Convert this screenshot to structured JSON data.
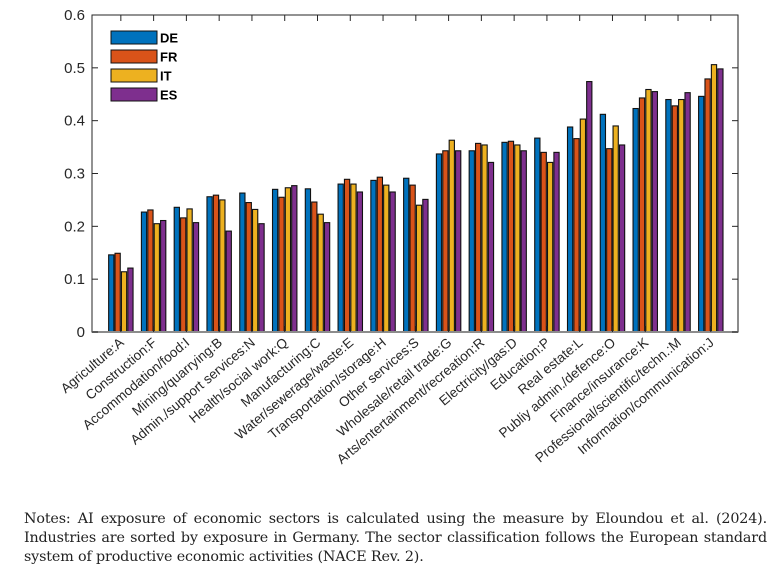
{
  "chart_data": {
    "type": "bar",
    "title": "",
    "xlabel": "",
    "ylabel": "",
    "ylim": [
      0,
      0.6
    ],
    "yticks": [
      "0",
      "0.1",
      "0.2",
      "0.3",
      "0.4",
      "0.5",
      "0.6"
    ],
    "grid": false,
    "legend_position": "top-left",
    "categories": [
      "Agriculture:A",
      "Construction:F",
      "Accommodation/food:I",
      "Mining/quarrying:B",
      "Admin./support services:N",
      "Health/social work:Q",
      "Manufacturing:C",
      "Water/sewerage/waste:E",
      "Transportation/storage:H",
      "Other services:S",
      "Wholesale/retail trade:G",
      "Arts/entertainment/recreation:R",
      "Electricity/gas:D",
      "Education:P",
      "Real estate:L",
      "Publiy admin./defence:O",
      "Finance/insurance:K",
      "Professional/scientific/techn.:M",
      "Information/communication:J"
    ],
    "series": [
      {
        "name": "DE",
        "color": "#0072BD",
        "values": [
          0.146,
          0.227,
          0.236,
          0.256,
          0.263,
          0.27,
          0.271,
          0.28,
          0.287,
          0.291,
          0.337,
          0.343,
          0.359,
          0.367,
          0.388,
          0.412,
          0.423,
          0.44,
          0.446
        ]
      },
      {
        "name": "FR",
        "color": "#D95319",
        "values": [
          0.149,
          0.231,
          0.216,
          0.259,
          0.245,
          0.255,
          0.246,
          0.289,
          0.293,
          0.278,
          0.343,
          0.357,
          0.361,
          0.34,
          0.366,
          0.347,
          0.443,
          0.428,
          0.479
        ]
      },
      {
        "name": "IT",
        "color": "#EDB120",
        "values": [
          0.114,
          0.205,
          0.233,
          0.25,
          0.232,
          0.273,
          0.223,
          0.28,
          0.278,
          0.24,
          0.363,
          0.354,
          0.354,
          0.321,
          0.403,
          0.39,
          0.459,
          0.44,
          0.506
        ]
      },
      {
        "name": "ES",
        "color": "#7E2F8E",
        "values": [
          0.121,
          0.211,
          0.207,
          0.191,
          0.205,
          0.277,
          0.207,
          0.265,
          0.265,
          0.251,
          0.343,
          0.321,
          0.343,
          0.34,
          0.474,
          0.354,
          0.455,
          0.453,
          0.498
        ]
      }
    ]
  },
  "notes": "Notes: AI exposure of economic sectors is calculated using the measure by Eloundou et al. (2024). Industries are sorted by exposure in Germany. The sector classification follows the European standard system of productive economic activities (NACE Rev. 2)."
}
